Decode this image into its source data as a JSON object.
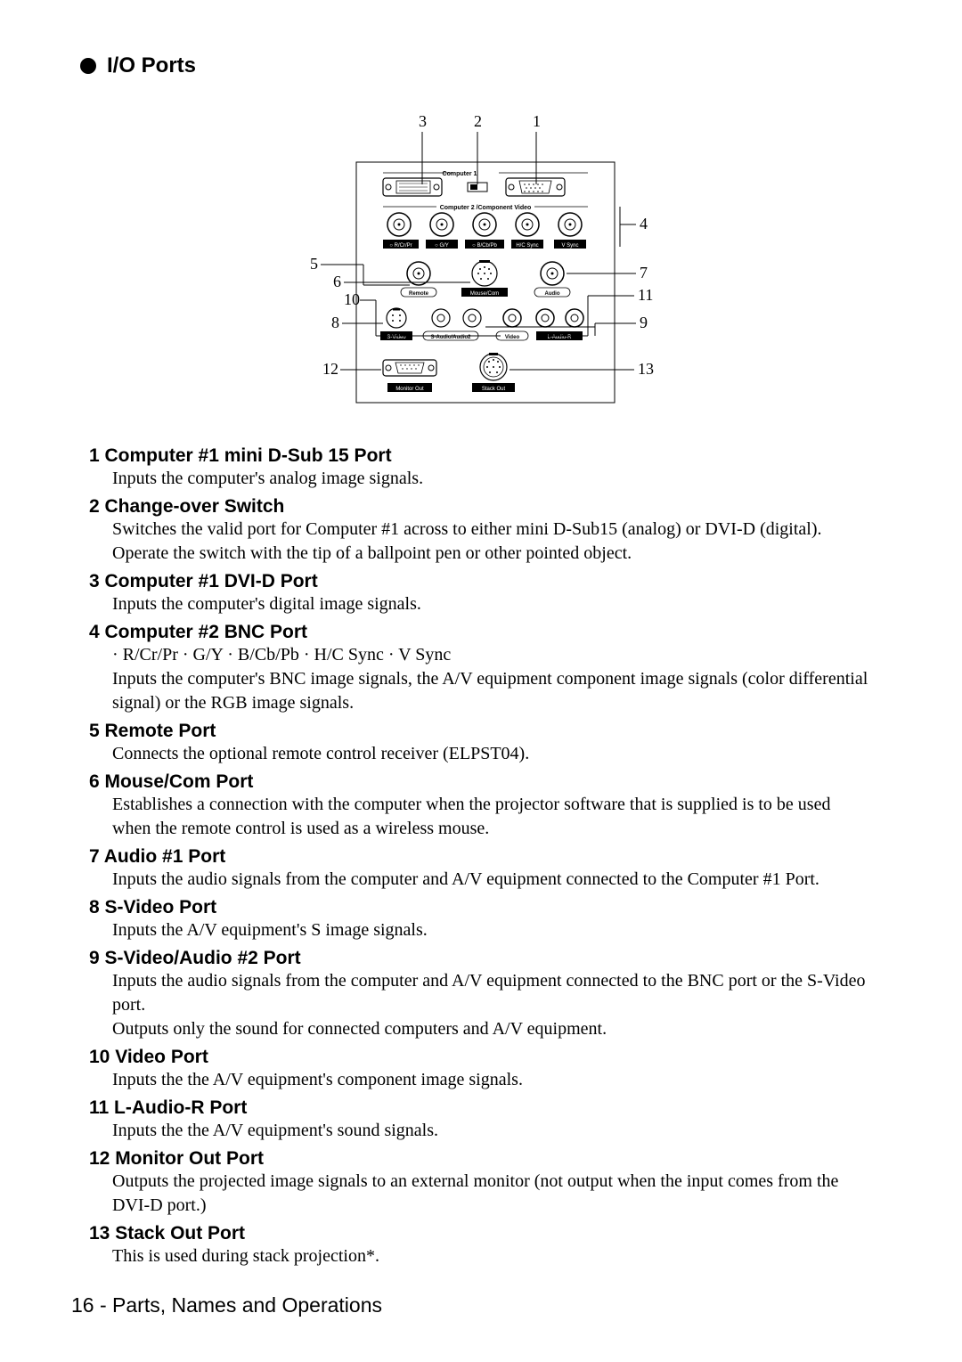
{
  "header": {
    "title": "I/O Ports"
  },
  "diagram": {
    "top_numbers": [
      "3",
      "2",
      "1"
    ],
    "left_numbers": [
      "5",
      "6",
      "10",
      "8",
      "12"
    ],
    "right_numbers": [
      "4",
      "7",
      "11",
      "9",
      "13"
    ],
    "labels": {
      "computer1": "Computer 1",
      "computer2": "Computer 2 /Component Video",
      "bnc1": "○ R/Cr/Pr",
      "bnc2": "○ G/Y",
      "bnc3": "○ B/Cb/Pb",
      "bnc4": "H/C Sync",
      "bnc5": "V Sync",
      "remote": "Remote",
      "mousecom": "Mouse/Com",
      "audio": "Audio",
      "svideo": "S-Video",
      "saudio": "S-Audio/Audio2",
      "video": "Video",
      "laudior": "L-Audio-R",
      "monitorout": "Monitor Out",
      "stackout": "Stack Out"
    }
  },
  "ports": [
    {
      "num": " 1",
      "title": "Computer #1 mini D-Sub 15 Port",
      "desc": [
        "Inputs the computer's analog image signals."
      ]
    },
    {
      "num": " 2",
      "title": "Change-over Switch",
      "desc": [
        "Switches the valid port for Computer #1 across to either mini D-Sub15 (analog) or DVI-D (digital). Operate the switch with the tip of a ballpoint pen or other pointed object."
      ]
    },
    {
      "num": " 3",
      "title": "Computer #1 DVI-D Port",
      "desc": [
        "Inputs the computer's digital image signals."
      ]
    },
    {
      "num": " 4",
      "title": "Computer #2 BNC Port",
      "desc": [
        "· R/Cr/Pr  · G/Y  · B/Cb/Pb · H/C Sync  · V Sync",
        "Inputs the computer's BNC image signals, the A/V equipment component image signals (color differential signal) or the RGB image signals."
      ]
    },
    {
      "num": " 5",
      "title": "Remote Port",
      "desc": [
        "Connects the optional remote control receiver (ELPST04)."
      ]
    },
    {
      "num": " 6",
      "title": "Mouse/Com Port",
      "desc": [
        "Establishes a connection with the computer when the projector software that is supplied is to be used when the remote control is used as a wireless mouse."
      ]
    },
    {
      "num": " 7",
      "title": "Audio #1 Port",
      "desc": [
        "Inputs the audio signals from the computer and A/V equipment connected to the Computer #1 Port."
      ]
    },
    {
      "num": " 8",
      "title": "S-Video Port",
      "desc": [
        "Inputs the A/V equipment's S image signals."
      ]
    },
    {
      "num": " 9",
      "title": "S-Video/Audio #2 Port",
      "desc": [
        "Inputs the audio signals from the computer and A/V equipment connected to the BNC port or the S-Video port.",
        "Outputs only the sound for connected computers and A/V equipment."
      ]
    },
    {
      "num": "10",
      "title": "Video Port",
      "desc": [
        "Inputs the the A/V equipment's component image signals."
      ]
    },
    {
      "num": "11",
      "title": "L-Audio-R Port",
      "desc": [
        "Inputs the the A/V equipment's sound signals."
      ]
    },
    {
      "num": "12",
      "title": "Monitor Out Port",
      "desc": [
        "Outputs the projected image signals to an external monitor (not output when the input comes from the DVI-D port.)"
      ]
    },
    {
      "num": "13",
      "title": "Stack Out Port",
      "desc": [
        "This is used during stack projection*."
      ]
    }
  ],
  "footer": {
    "text": "16 - Parts, Names and Operations"
  }
}
